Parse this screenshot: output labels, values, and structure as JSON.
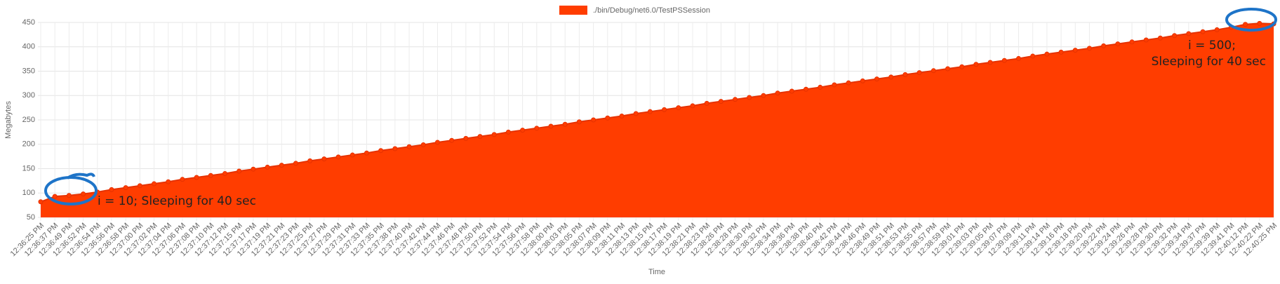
{
  "chart_data": {
    "type": "area",
    "x_label": "Time",
    "y_label": "Megabytes",
    "ylim": [
      50,
      450
    ],
    "yticks": [
      50,
      100,
      150,
      200,
      250,
      300,
      350,
      400,
      450
    ],
    "grid": true,
    "legend": "top",
    "categories": [
      "12:36:25 PM",
      "12:36:37 PM",
      "12:36:49 PM",
      "12:36:52 PM",
      "12:36:54 PM",
      "12:36:56 PM",
      "12:36:58 PM",
      "12:37:00 PM",
      "12:37:02 PM",
      "12:37:04 PM",
      "12:37:06 PM",
      "12:37:08 PM",
      "12:37:10 PM",
      "12:37:12 PM",
      "12:37:15 PM",
      "12:37:17 PM",
      "12:37:19 PM",
      "12:37:21 PM",
      "12:37:23 PM",
      "12:37:25 PM",
      "12:37:27 PM",
      "12:37:29 PM",
      "12:37:31 PM",
      "12:37:33 PM",
      "12:37:35 PM",
      "12:37:38 PM",
      "12:37:40 PM",
      "12:37:42 PM",
      "12:37:44 PM",
      "12:37:46 PM",
      "12:37:48 PM",
      "12:37:50 PM",
      "12:37:52 PM",
      "12:37:54 PM",
      "12:37:56 PM",
      "12:37:58 PM",
      "12:38:00 PM",
      "12:38:03 PM",
      "12:38:05 PM",
      "12:38:07 PM",
      "12:38:09 PM",
      "12:38:11 PM",
      "12:38:13 PM",
      "12:38:15 PM",
      "12:38:17 PM",
      "12:38:19 PM",
      "12:38:21 PM",
      "12:38:23 PM",
      "12:38:26 PM",
      "12:38:28 PM",
      "12:38:30 PM",
      "12:38:32 PM",
      "12:38:34 PM",
      "12:38:36 PM",
      "12:38:38 PM",
      "12:38:40 PM",
      "12:38:42 PM",
      "12:38:44 PM",
      "12:38:46 PM",
      "12:38:49 PM",
      "12:38:51 PM",
      "12:38:53 PM",
      "12:38:55 PM",
      "12:38:57 PM",
      "12:38:59 PM",
      "12:39:01 PM",
      "12:39:03 PM",
      "12:39:05 PM",
      "12:39:07 PM",
      "12:39:09 PM",
      "12:39:11 PM",
      "12:39:14 PM",
      "12:39:16 PM",
      "12:39:18 PM",
      "12:39:20 PM",
      "12:39:22 PM",
      "12:39:24 PM",
      "12:39:26 PM",
      "12:39:28 PM",
      "12:39:30 PM",
      "12:39:32 PM",
      "12:39:34 PM",
      "12:39:37 PM",
      "12:39:39 PM",
      "12:39:41 PM",
      "12:40:12 PM",
      "12:40:22 PM",
      "12:40:25 PM"
    ],
    "series": [
      {
        "name": "./bin/Debug/net6.0/TestPSSession",
        "color": "#ff3d00",
        "border_color": "#e63200",
        "values": [
          82,
          93,
          95,
          98,
          102,
          107,
          111,
          115,
          119,
          123,
          128,
          132,
          136,
          140,
          145,
          149,
          153,
          157,
          161,
          166,
          170,
          174,
          178,
          182,
          187,
          191,
          195,
          199,
          204,
          208,
          212,
          216,
          220,
          225,
          229,
          233,
          237,
          241,
          246,
          250,
          254,
          258,
          263,
          267,
          271,
          275,
          279,
          284,
          288,
          292,
          296,
          300,
          305,
          309,
          313,
          317,
          322,
          326,
          330,
          334,
          338,
          343,
          347,
          351,
          355,
          359,
          364,
          368,
          372,
          376,
          381,
          385,
          389,
          393,
          397,
          402,
          406,
          410,
          414,
          418,
          423,
          427,
          431,
          435,
          440,
          446,
          448,
          447
        ]
      }
    ],
    "annotations": [
      "i = 10; Sleeping for 40 sec",
      "i = 500;",
      "Sleeping for 40 sec"
    ]
  }
}
